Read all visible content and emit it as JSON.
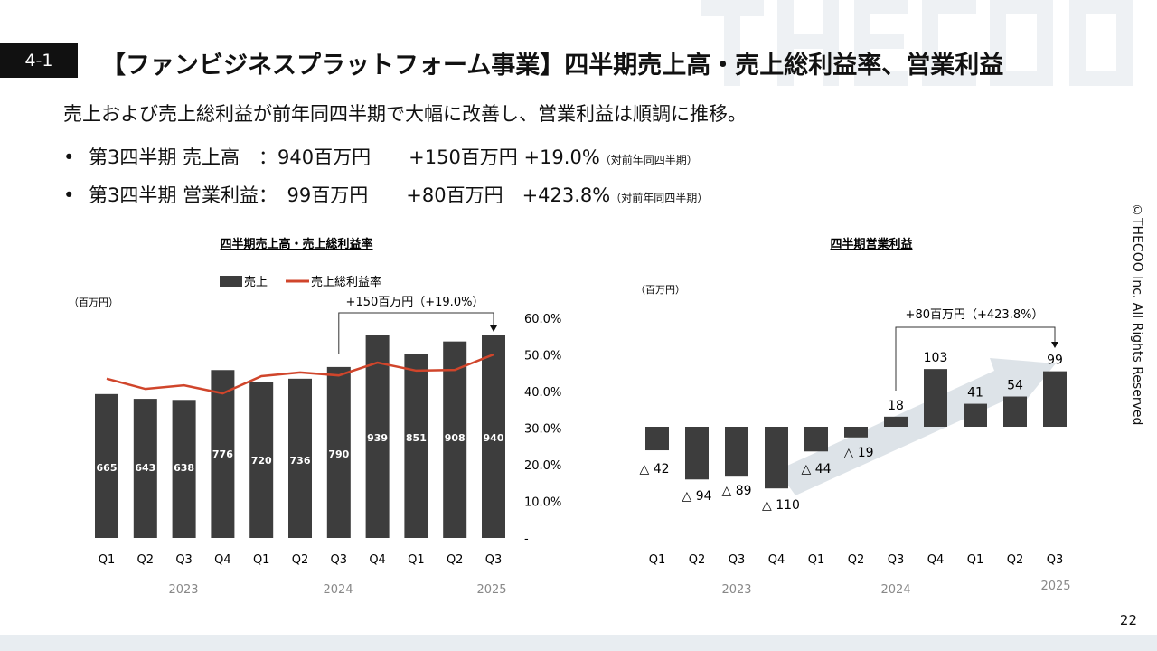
{
  "header": {
    "section": "4-1",
    "title": "【ファンビジネスプラットフォーム事業】四半期売上高・売上総利益率、営業利益",
    "watermark": "THECOO"
  },
  "lead": "売上および売上総利益が前年同四半期で大幅に改善し、営業利益は順調に推移。",
  "bullets": [
    {
      "label": "第3四半期 売上高　：940百万円",
      "change": "+150百万円 +19.0%",
      "note": "（対前年同四半期）"
    },
    {
      "label": "第3四半期 営業利益：　99百万円",
      "change": "+80百万円　+423.8%",
      "note": "（対前年同四半期）"
    }
  ],
  "copyright": "©THECOO Inc. All Rights Reserved",
  "page_number": "22",
  "colors": {
    "bar": "#3d3d3d",
    "line": "#d0452b",
    "arrow": "#dde3e8"
  },
  "chart_data": [
    {
      "type": "bar+line",
      "title": "四半期売上高・売上総利益率",
      "unit_label": "（百万円）",
      "categories": [
        "Q1",
        "Q2",
        "Q3",
        "Q4",
        "Q1",
        "Q2",
        "Q3",
        "Q4",
        "Q1",
        "Q2",
        "Q3"
      ],
      "year_labels": [
        "2023",
        "2024",
        "2025"
      ],
      "series": [
        {
          "name": "売上",
          "type": "bar",
          "values": [
            665,
            643,
            638,
            776,
            720,
            736,
            790,
            939,
            851,
            908,
            940
          ]
        },
        {
          "name": "売上総利益率",
          "type": "line",
          "axis": "right",
          "values": [
            43.5,
            40.7,
            41.7,
            39.5,
            44.2,
            45.2,
            44.4,
            47.9,
            45.7,
            45.9,
            50.1
          ]
        }
      ],
      "right_axis": {
        "ticks": [
          "-",
          "10.0%",
          "20.0%",
          "30.0%",
          "40.0%",
          "50.0%",
          "60.0%"
        ],
        "range": [
          0,
          60
        ]
      },
      "annotation": "+150百万円（+19.0%）",
      "legend": "top"
    },
    {
      "type": "bar",
      "title": "四半期営業利益",
      "unit_label": "（百万円）",
      "categories": [
        "Q1",
        "Q2",
        "Q3",
        "Q4",
        "Q1",
        "Q2",
        "Q3",
        "Q4",
        "Q1",
        "Q2",
        "Q3"
      ],
      "year_labels": [
        "2023",
        "2024",
        "2025"
      ],
      "values": [
        -42,
        -94,
        -89,
        -110,
        -44,
        -19,
        18,
        103,
        41,
        54,
        99
      ],
      "value_labels": [
        "△ 42",
        "△ 94",
        "△ 89",
        "△ 110",
        "△ 44",
        "△ 19",
        "18",
        "103",
        "41",
        "54",
        "99"
      ],
      "annotation": "+80百万円（+423.8%）"
    }
  ]
}
